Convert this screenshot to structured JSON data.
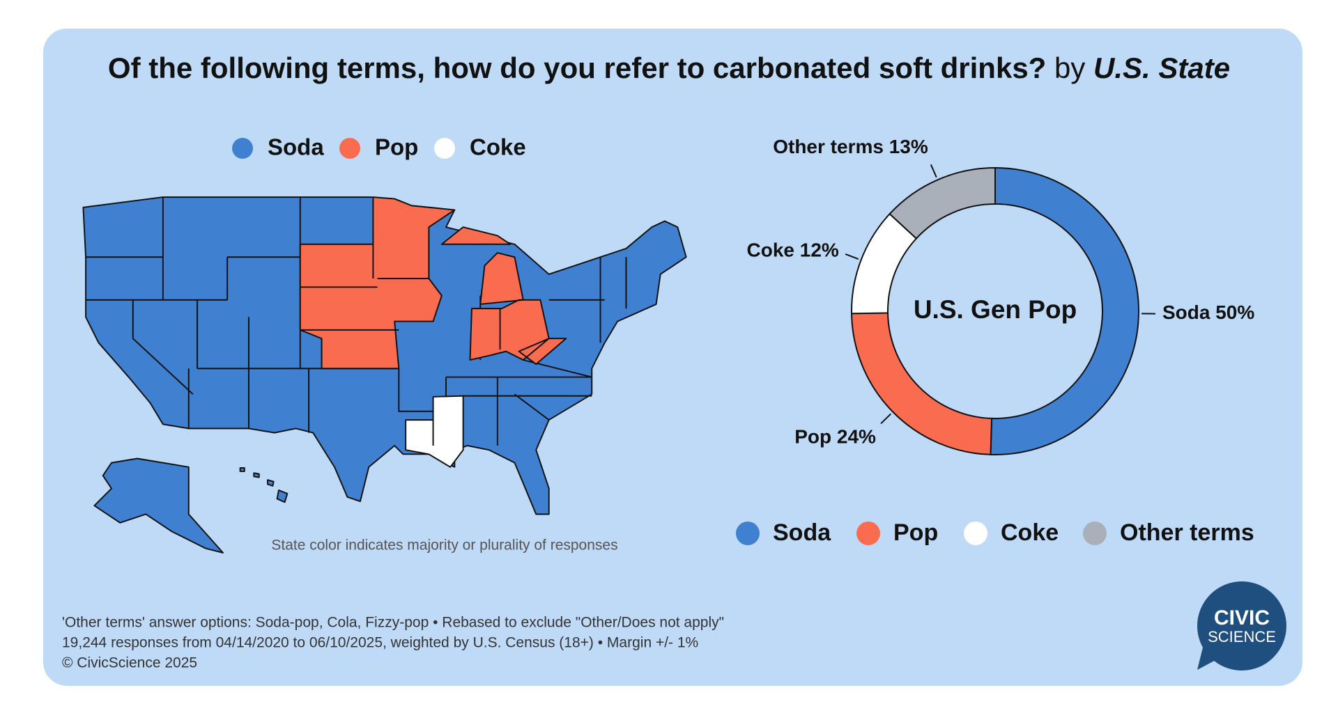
{
  "title": "Of the following terms, how do you refer to carbonated soft drinks?",
  "title_by": "by",
  "title_group": "U.S. State",
  "map": {
    "legend": [
      {
        "name": "Soda",
        "color": "#3f80d0"
      },
      {
        "name": "Pop",
        "color": "#f96c4f"
      },
      {
        "name": "Coke",
        "color": "#ffffff"
      }
    ],
    "note": "State color indicates majority or plurality of responses"
  },
  "chart_data": {
    "type": "pie",
    "donut": true,
    "center_label": "U.S. Gen Pop",
    "categories": [
      "Soda",
      "Pop",
      "Coke",
      "Other terms"
    ],
    "values": [
      50,
      24,
      12,
      13
    ],
    "value_labels": [
      "50%",
      "24%",
      "12%",
      "13%"
    ],
    "colors": [
      "#3f80d0",
      "#f96c4f",
      "#ffffff",
      "#a9b0b9"
    ]
  },
  "footer": [
    "'Other terms' answer options: Soda-pop, Cola, Fizzy-pop  •  Rebased to exclude \"Other/Does not apply\"",
    "19,244 responses from 04/14/2020 to 06/10/2025, weighted by U.S. Census (18+)  •  Margin +/- 1%",
    "© CivicScience 2025"
  ],
  "logo": [
    "CIVIC",
    "SCIENCE"
  ]
}
